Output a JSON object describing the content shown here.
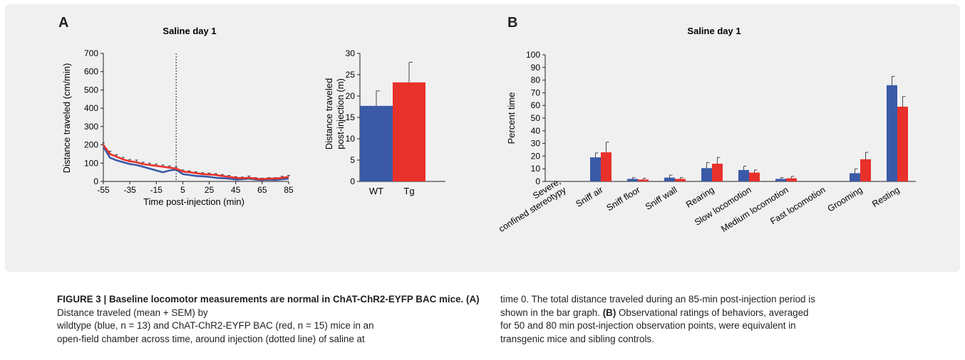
{
  "panel_labels": {
    "a": "A",
    "b": "B"
  },
  "chart_data": [
    {
      "type": "line",
      "title": "Saline day 1",
      "xlabel": "Time post-injection (min)",
      "ylabel": "Distance traveled (cm/min)",
      "xlim": [
        -55,
        85
      ],
      "ylim": [
        0,
        700
      ],
      "x_ticks": [
        -55,
        -35,
        -15,
        5,
        25,
        45,
        65,
        85
      ],
      "y_ticks": [
        0,
        100,
        200,
        300,
        400,
        500,
        600,
        700
      ],
      "injection_time": 0,
      "x": [
        -55,
        -50,
        -45,
        -40,
        -35,
        -30,
        -25,
        -20,
        -15,
        -10,
        -5,
        0,
        5,
        10,
        15,
        20,
        25,
        30,
        35,
        40,
        45,
        50,
        55,
        60,
        65,
        70,
        75,
        80,
        85
      ],
      "series": [
        {
          "color": "#3a5aa8",
          "values": [
            190,
            130,
            115,
            105,
            95,
            90,
            80,
            70,
            60,
            50,
            60,
            65,
            40,
            35,
            30,
            28,
            25,
            20,
            18,
            15,
            10,
            12,
            15,
            10,
            8,
            10,
            8,
            12,
            15
          ]
        },
        {
          "color": "#e8312a",
          "values": [
            200,
            150,
            135,
            120,
            110,
            105,
            95,
            90,
            85,
            80,
            75,
            70,
            55,
            50,
            45,
            40,
            38,
            35,
            30,
            25,
            20,
            18,
            20,
            15,
            12,
            15,
            15,
            20,
            25
          ],
          "sem": [
            10,
            15,
            12,
            12,
            10,
            12,
            10,
            10,
            10,
            10,
            10,
            10,
            8,
            8,
            8,
            8,
            8,
            8,
            8,
            8,
            6,
            6,
            10,
            6,
            6,
            6,
            6,
            8,
            8
          ]
        }
      ]
    },
    {
      "type": "bar",
      "ylabel": "Distance traveled post-injection (m)",
      "categories": [
        "WT",
        "Tg"
      ],
      "values": [
        17.7,
        23.2
      ],
      "sem": [
        3.5,
        4.7
      ],
      "colors": [
        "#3a5aa8",
        "#e8312a"
      ],
      "ylim": [
        0,
        30
      ],
      "y_ticks": [
        0,
        5,
        10,
        15,
        20,
        25,
        30
      ]
    },
    {
      "type": "bar",
      "title": "Saline day 1",
      "ylabel": "Percent time",
      "ylim": [
        0,
        100
      ],
      "y_ticks": [
        0,
        10,
        20,
        30,
        40,
        50,
        60,
        70,
        80,
        90,
        100
      ],
      "categories": [
        "Severe, confined stereotypy",
        "Sniff air",
        "Sniff floor",
        "Sniff wall",
        "Rearing",
        "Slow locomotion",
        "Medium locomotion",
        "Fast locomotion",
        "Grooming",
        "Resting"
      ],
      "series": [
        {
          "color": "#3a5aa8",
          "values": [
            0,
            19,
            2,
            3,
            10.5,
            9,
            2,
            0,
            6.5,
            76
          ],
          "sem": [
            0,
            3.5,
            1,
            2,
            4.5,
            3,
            1,
            0,
            3.5,
            7
          ]
        },
        {
          "color": "#e8312a",
          "values": [
            0,
            23,
            1.5,
            2,
            14,
            7,
            2.5,
            0,
            17.5,
            59
          ],
          "sem": [
            0,
            8,
            1,
            1,
            5,
            2,
            1.5,
            0,
            5.5,
            8
          ]
        }
      ]
    }
  ],
  "caption": {
    "heading": "FIGURE 3 | Baseline locomotor measurements are normal in ChAT-ChR2-EYFP BAC mice. (A)",
    "lines_left": [
      "Distance traveled (mean + SEM) by",
      "wildtype (blue, n = 13) and ChAT-ChR2-EYFP BAC (red, n = 15) mice in an",
      "open-field chamber across time, around injection (dotted line) of saline at"
    ],
    "line_right_1": "time 0. The total distance traveled during an 85-min post-injection period is",
    "line_right_2": "shown in the bar graph.",
    "label_b": "(B)",
    "line_right_2b": "Observational ratings of behaviors, averaged",
    "line_right_3": "for 50 and 80 min post-injection observation points, were equivalent in",
    "line_right_4": "transgenic mice and sibling controls."
  }
}
